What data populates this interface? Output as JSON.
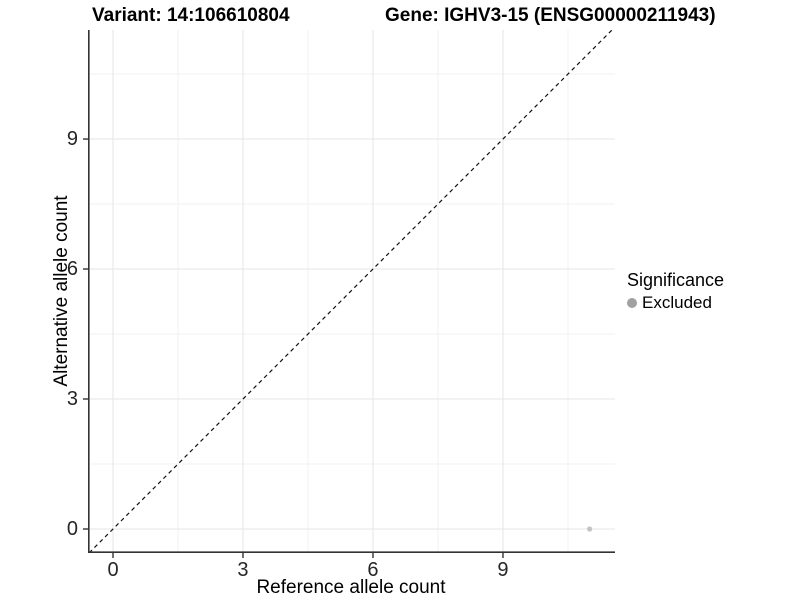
{
  "titles": {
    "variant": "Variant: 14:106610804",
    "gene": "Gene: IGHV3-15 (ENSG00000211943)"
  },
  "legend": {
    "title": "Significance",
    "position": "right",
    "items": [
      {
        "label": "Excluded",
        "key_color": "#a1a1a1"
      }
    ]
  },
  "chart_data": {
    "type": "scatter",
    "xlabel": "Reference allele count",
    "ylabel": "Alternative allele count",
    "xticks": [
      0,
      3,
      6,
      9
    ],
    "yticks": [
      0,
      3,
      6,
      9
    ],
    "minor_ticks_x": [
      1.5,
      4.5,
      7.5,
      10.5
    ],
    "minor_ticks_y": [
      1.5,
      4.5,
      7.5,
      10.5
    ],
    "xlim": [
      -0.58,
      11.58
    ],
    "ylim": [
      -0.55,
      11.52
    ],
    "grid": "major-and-minor",
    "reference_line": {
      "kind": "identity y=x",
      "style": "dashed",
      "color": "#111111"
    },
    "series": [
      {
        "name": "Excluded",
        "color": "#c4c4c4",
        "point_radius": 2.6,
        "points": [
          [
            11,
            0
          ]
        ]
      }
    ],
    "style": {
      "background": "#ffffff",
      "major_grid_color": "#e5e5e5",
      "minor_grid_color": "#f2f2f2",
      "axis_line_color": "#333333",
      "tick_color": "#333333"
    }
  }
}
